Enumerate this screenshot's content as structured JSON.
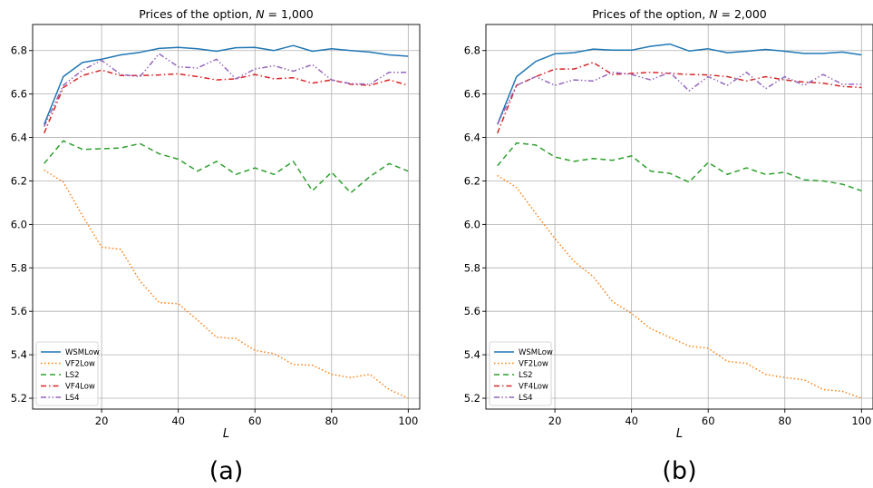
{
  "chart_data": [
    {
      "type": "line",
      "title": "Prices of the option, N = 1,000",
      "title_prefix": "Prices of the option, ",
      "title_var": "N",
      "title_suffix": " = 1,000",
      "xlabel": "L",
      "ylabel": "",
      "panel_label": "(a)",
      "xlim": [
        2,
        103
      ],
      "ylim": [
        5.15,
        6.92
      ],
      "xticks": [
        20,
        40,
        60,
        80,
        100
      ],
      "yticks": [
        5.2,
        5.4,
        5.6,
        5.8,
        6.0,
        6.2,
        6.4,
        6.6,
        6.8
      ],
      "grid": true,
      "legend_position": "lower-left",
      "x": [
        5,
        10,
        15,
        20,
        25,
        30,
        35,
        40,
        45,
        50,
        55,
        60,
        65,
        70,
        75,
        80,
        85,
        90,
        95,
        100
      ],
      "series": [
        {
          "name": "WSMLow",
          "color": "#1f77b4",
          "dash": "solid",
          "values": [
            6.46,
            6.68,
            6.745,
            6.76,
            6.78,
            6.792,
            6.81,
            6.815,
            6.808,
            6.797,
            6.813,
            6.815,
            6.8,
            6.823,
            6.797,
            6.808,
            6.8,
            6.793,
            6.78,
            6.774
          ]
        },
        {
          "name": "VF2Low",
          "color": "#ff7f0e",
          "dash": "dotted",
          "values": [
            6.25,
            6.195,
            6.04,
            5.895,
            5.885,
            5.74,
            5.64,
            5.635,
            5.56,
            5.48,
            5.475,
            5.42,
            5.405,
            5.355,
            5.352,
            5.31,
            5.295,
            5.31,
            5.24,
            5.2
          ]
        },
        {
          "name": "LS2",
          "color": "#2ca02c",
          "dash": "dashed",
          "values": [
            6.28,
            6.385,
            6.345,
            6.348,
            6.352,
            6.372,
            6.325,
            6.3,
            6.245,
            6.29,
            6.23,
            6.26,
            6.23,
            6.29,
            6.155,
            6.24,
            6.145,
            6.22,
            6.28,
            6.245
          ]
        },
        {
          "name": "VF4Low",
          "color": "#d62728",
          "dash": "dashdot",
          "values": [
            6.42,
            6.63,
            6.685,
            6.71,
            6.685,
            6.685,
            6.688,
            6.693,
            6.68,
            6.665,
            6.67,
            6.69,
            6.67,
            6.675,
            6.65,
            6.665,
            6.645,
            6.64,
            6.665,
            6.64
          ]
        },
        {
          "name": "LS4",
          "color": "#9467bd",
          "dash": "dashdotdot",
          "values": [
            6.45,
            6.64,
            6.71,
            6.755,
            6.69,
            6.68,
            6.785,
            6.725,
            6.72,
            6.76,
            6.67,
            6.715,
            6.73,
            6.705,
            6.735,
            6.665,
            6.648,
            6.645,
            6.7,
            6.7
          ]
        }
      ]
    },
    {
      "type": "line",
      "title": "Prices of the option, N = 2,000",
      "title_prefix": "Prices of the option, ",
      "title_var": "N",
      "title_suffix": " = 2,000",
      "xlabel": "L",
      "ylabel": "",
      "panel_label": "(b)",
      "xlim": [
        2,
        103
      ],
      "ylim": [
        5.15,
        6.92
      ],
      "xticks": [
        20,
        40,
        60,
        80,
        100
      ],
      "yticks": [
        5.2,
        5.4,
        5.6,
        5.8,
        6.0,
        6.2,
        6.4,
        6.6,
        6.8
      ],
      "grid": true,
      "legend_position": "lower-left",
      "x": [
        5,
        10,
        15,
        20,
        25,
        30,
        35,
        40,
        45,
        50,
        55,
        60,
        65,
        70,
        75,
        80,
        85,
        90,
        95,
        100
      ],
      "series": [
        {
          "name": "WSMLow",
          "color": "#1f77b4",
          "dash": "solid",
          "values": [
            6.46,
            6.68,
            6.75,
            6.785,
            6.79,
            6.807,
            6.802,
            6.802,
            6.82,
            6.83,
            6.798,
            6.808,
            6.79,
            6.797,
            6.805,
            6.797,
            6.787,
            6.787,
            6.793,
            6.78
          ]
        },
        {
          "name": "VF2Low",
          "color": "#ff7f0e",
          "dash": "dotted",
          "values": [
            6.225,
            6.17,
            6.05,
            5.935,
            5.83,
            5.76,
            5.645,
            5.59,
            5.52,
            5.48,
            5.44,
            5.43,
            5.37,
            5.36,
            5.31,
            5.295,
            5.285,
            5.24,
            5.232,
            5.2
          ]
        },
        {
          "name": "LS2",
          "color": "#2ca02c",
          "dash": "dashed",
          "values": [
            6.27,
            6.375,
            6.365,
            6.31,
            6.29,
            6.303,
            6.295,
            6.315,
            6.245,
            6.235,
            6.195,
            6.285,
            6.23,
            6.26,
            6.23,
            6.24,
            6.205,
            6.2,
            6.185,
            6.155
          ]
        },
        {
          "name": "VF4Low",
          "color": "#d62728",
          "dash": "dashdot",
          "values": [
            6.42,
            6.64,
            6.68,
            6.715,
            6.715,
            6.745,
            6.69,
            6.695,
            6.7,
            6.695,
            6.69,
            6.688,
            6.68,
            6.66,
            6.68,
            6.665,
            6.655,
            6.65,
            6.635,
            6.63
          ]
        },
        {
          "name": "LS4",
          "color": "#9467bd",
          "dash": "dashdotdot",
          "values": [
            6.46,
            6.64,
            6.68,
            6.64,
            6.665,
            6.66,
            6.7,
            6.69,
            6.665,
            6.7,
            6.615,
            6.68,
            6.64,
            6.7,
            6.625,
            6.68,
            6.64,
            6.69,
            6.645,
            6.645
          ]
        }
      ]
    }
  ]
}
